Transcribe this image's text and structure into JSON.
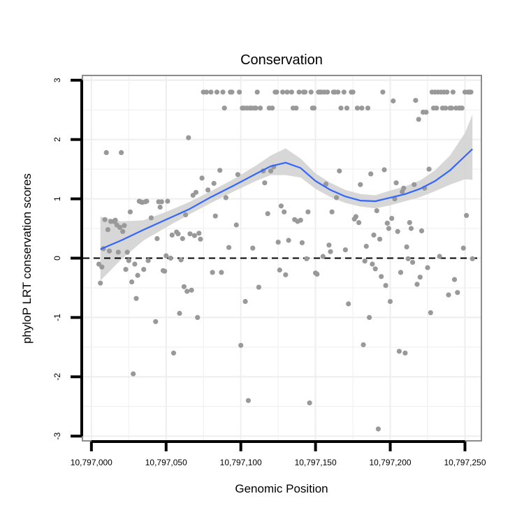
{
  "chart_data": {
    "type": "scatter",
    "title": "Conservation",
    "xlabel": "Genomic Position",
    "ylabel": "phyloP LRT conservation scores",
    "xlim": [
      10796994,
      10797261
    ],
    "ylim": [
      -3.08,
      3.08
    ],
    "xticks": [
      10797000,
      10797050,
      10797100,
      10797150,
      10797200,
      10797250
    ],
    "xtick_labels": [
      "10,797,000",
      "10,797,050",
      "10,797,100",
      "10,797,150",
      "10,797,200",
      "10,797,250"
    ],
    "yticks": [
      -3,
      -2,
      -1,
      0,
      1,
      2,
      3
    ],
    "ytick_labels": [
      "-3",
      "-2",
      "-1",
      "0",
      "1",
      "2",
      "3"
    ],
    "reference_line": {
      "y": 0,
      "style": "dashed"
    },
    "colors": {
      "points": "#999999",
      "smooth": "#3366ff",
      "band": "#d0d0d0",
      "panel": "#ffffff",
      "grid": "#eeeeee",
      "frame": "#8c8c8c"
    },
    "points": [
      [
        10797005,
        -0.1
      ],
      [
        10797006,
        -0.42
      ],
      [
        10797007,
        -0.15
      ],
      [
        10797008,
        0.16
      ],
      [
        10797009,
        0.65
      ],
      [
        10797010,
        1.78
      ],
      [
        10797011,
        0.48
      ],
      [
        10797012,
        0.12
      ],
      [
        10797013,
        0.62
      ],
      [
        10797015,
        0.62
      ],
      [
        10797016,
        0.64
      ],
      [
        10797017,
        0.56
      ],
      [
        10797018,
        0.1
      ],
      [
        10797019,
        0.52
      ],
      [
        10797020,
        1.78
      ],
      [
        10797021,
        0.45
      ],
      [
        10797022,
        0.55
      ],
      [
        10797023,
        -0.19
      ],
      [
        10797024,
        0.1
      ],
      [
        10797025,
        -0.04
      ],
      [
        10797026,
        0.78
      ],
      [
        10797027,
        -0.4
      ],
      [
        10797028,
        -1.95
      ],
      [
        10797029,
        -0.1
      ],
      [
        10797030,
        -0.68
      ],
      [
        10797031,
        -0.29
      ],
      [
        10797032,
        0.96
      ],
      [
        10797033,
        0.95
      ],
      [
        10797034,
        0.94
      ],
      [
        10797035,
        -0.19
      ],
      [
        10797036,
        0.95
      ],
      [
        10797037,
        0.96
      ],
      [
        10797038,
        -0.04
      ],
      [
        10797040,
        0.68
      ],
      [
        10797043,
        -1.07
      ],
      [
        10797044,
        0.33
      ],
      [
        10797045,
        0.95
      ],
      [
        10797046,
        0.86
      ],
      [
        10797047,
        0.95
      ],
      [
        10797048,
        -0.21
      ],
      [
        10797049,
        -0.22
      ],
      [
        10797050,
        0.04
      ],
      [
        10797051,
        0.96
      ],
      [
        10797053,
        0.0
      ],
      [
        10797054,
        0.39
      ],
      [
        10797055,
        -1.6
      ],
      [
        10797057,
        0.44
      ],
      [
        10797058,
        0.41
      ],
      [
        10797059,
        -0.93
      ],
      [
        10797060,
        -0.03
      ],
      [
        10797061,
        0.33
      ],
      [
        10797062,
        -0.48
      ],
      [
        10797063,
        0.73
      ],
      [
        10797064,
        -0.56
      ],
      [
        10797065,
        2.03
      ],
      [
        10797066,
        0.41
      ],
      [
        10797067,
        -0.54
      ],
      [
        10797068,
        1.06
      ],
      [
        10797069,
        0.38
      ],
      [
        10797070,
        1.11
      ],
      [
        10797071,
        -1.0
      ],
      [
        10797072,
        0.42
      ],
      [
        10797073,
        0.32
      ],
      [
        10797074,
        1.35
      ],
      [
        10797075,
        2.8
      ],
      [
        10797077,
        2.8
      ],
      [
        10797078,
        1.15
      ],
      [
        10797080,
        2.8
      ],
      [
        10797081,
        -0.24
      ],
      [
        10797082,
        1.26
      ],
      [
        10797083,
        0.71
      ],
      [
        10797084,
        2.8
      ],
      [
        10797086,
        1.48
      ],
      [
        10797087,
        -0.24
      ],
      [
        10797088,
        2.8
      ],
      [
        10797089,
        2.53
      ],
      [
        10797090,
        1.02
      ],
      [
        10797092,
        0.18
      ],
      [
        10797093,
        2.8
      ],
      [
        10797094,
        2.8
      ],
      [
        10797097,
        0.56
      ],
      [
        10797098,
        1.41
      ],
      [
        10797099,
        2.8
      ],
      [
        10797100,
        -1.47
      ],
      [
        10797101,
        2.53
      ],
      [
        10797102,
        2.53
      ],
      [
        10797103,
        -0.73
      ],
      [
        10797104,
        2.53
      ],
      [
        10797105,
        -2.4
      ],
      [
        10797106,
        2.53
      ],
      [
        10797107,
        2.53
      ],
      [
        10797108,
        0.17
      ],
      [
        10797109,
        2.53
      ],
      [
        10797110,
        2.53
      ],
      [
        10797111,
        2.8
      ],
      [
        10797112,
        -0.49
      ],
      [
        10797113,
        2.53
      ],
      [
        10797115,
        1.47
      ],
      [
        10797116,
        1.27
      ],
      [
        10797118,
        0.75
      ],
      [
        10797119,
        2.53
      ],
      [
        10797120,
        1.47
      ],
      [
        10797121,
        2.53
      ],
      [
        10797122,
        1.54
      ],
      [
        10797123,
        2.8
      ],
      [
        10797124,
        2.8
      ],
      [
        10797125,
        0.27
      ],
      [
        10797126,
        -0.2
      ],
      [
        10797127,
        0.88
      ],
      [
        10797128,
        2.8
      ],
      [
        10797129,
        0.78
      ],
      [
        10797130,
        -0.28
      ],
      [
        10797131,
        2.8
      ],
      [
        10797132,
        0.3
      ],
      [
        10797134,
        2.8
      ],
      [
        10797135,
        2.53
      ],
      [
        10797136,
        0.65
      ],
      [
        10797137,
        2.53
      ],
      [
        10797138,
        0.62
      ],
      [
        10797139,
        2.8
      ],
      [
        10797140,
        0.64
      ],
      [
        10797141,
        0.26
      ],
      [
        10797142,
        2.8
      ],
      [
        10797143,
        2.8
      ],
      [
        10797144,
        -0.01
      ],
      [
        10797145,
        0.78
      ],
      [
        10797146,
        -2.44
      ],
      [
        10797147,
        2.8
      ],
      [
        10797148,
        2.53
      ],
      [
        10797149,
        2.53
      ],
      [
        10797150,
        -0.25
      ],
      [
        10797151,
        -0.27
      ],
      [
        10797152,
        2.8
      ],
      [
        10797153,
        2.8
      ],
      [
        10797154,
        2.8
      ],
      [
        10797155,
        0.03
      ],
      [
        10797156,
        2.8
      ],
      [
        10797157,
        1.25
      ],
      [
        10797158,
        2.8
      ],
      [
        10797159,
        0.22
      ],
      [
        10797160,
        0.11
      ],
      [
        10797161,
        0.78
      ],
      [
        10797162,
        2.8
      ],
      [
        10797163,
        2.8
      ],
      [
        10797164,
        1.02
      ],
      [
        10797165,
        2.8
      ],
      [
        10797166,
        1.47
      ],
      [
        10797167,
        2.53
      ],
      [
        10797169,
        2.8
      ],
      [
        10797170,
        0.14
      ],
      [
        10797171,
        2.53
      ],
      [
        10797172,
        -0.77
      ],
      [
        10797174,
        2.8
      ],
      [
        10797175,
        2.8
      ],
      [
        10797176,
        0.66
      ],
      [
        10797177,
        0.7
      ],
      [
        10797178,
        2.53
      ],
      [
        10797179,
        0.6
      ],
      [
        10797180,
        1.24
      ],
      [
        10797181,
        2.53
      ],
      [
        10797182,
        -1.46
      ],
      [
        10797183,
        -0.05
      ],
      [
        10797184,
        0.2
      ],
      [
        10797185,
        2.53
      ],
      [
        10797186,
        -1.0
      ],
      [
        10797187,
        1.42
      ],
      [
        10797188,
        -0.1
      ],
      [
        10797189,
        0.39
      ],
      [
        10797190,
        -0.18
      ],
      [
        10797191,
        0.8
      ],
      [
        10797192,
        -2.88
      ],
      [
        10797193,
        0.32
      ],
      [
        10797194,
        -0.31
      ],
      [
        10797195,
        2.8
      ],
      [
        10797196,
        1.49
      ],
      [
        10797197,
        -0.46
      ],
      [
        10797198,
        0.59
      ],
      [
        10797199,
        0.5
      ],
      [
        10797200,
        -0.73
      ],
      [
        10797201,
        0.67
      ],
      [
        10797202,
        2.65
      ],
      [
        10797203,
        1.0
      ],
      [
        10797204,
        1.27
      ],
      [
        10797205,
        0.45
      ],
      [
        10797206,
        -1.57
      ],
      [
        10797207,
        -0.24
      ],
      [
        10797208,
        1.12
      ],
      [
        10797209,
        1.18
      ],
      [
        10797210,
        -1.6
      ],
      [
        10797211,
        0.19
      ],
      [
        10797212,
        -0.01
      ],
      [
        10797213,
        0.6
      ],
      [
        10797214,
        0.5
      ],
      [
        10797215,
        -0.07
      ],
      [
        10797216,
        1.24
      ],
      [
        10797217,
        2.66
      ],
      [
        10797218,
        -0.44
      ],
      [
        10797219,
        2.34
      ],
      [
        10797220,
        -0.32
      ],
      [
        10797221,
        0.46
      ],
      [
        10797222,
        2.46
      ],
      [
        10797223,
        1.18
      ],
      [
        10797224,
        2.46
      ],
      [
        10797225,
        -0.16
      ],
      [
        10797226,
        1.5
      ],
      [
        10797227,
        -0.92
      ],
      [
        10797228,
        2.8
      ],
      [
        10797229,
        2.53
      ],
      [
        10797230,
        2.8
      ],
      [
        10797231,
        2.53
      ],
      [
        10797232,
        2.8
      ],
      [
        10797233,
        0.03
      ],
      [
        10797234,
        2.8
      ],
      [
        10797235,
        2.53
      ],
      [
        10797236,
        2.8
      ],
      [
        10797237,
        2.53
      ],
      [
        10797238,
        2.8
      ],
      [
        10797239,
        -0.62
      ],
      [
        10797240,
        2.53
      ],
      [
        10797241,
        2.53
      ],
      [
        10797242,
        2.8
      ],
      [
        10797243,
        -0.36
      ],
      [
        10797244,
        2.53
      ],
      [
        10797245,
        -0.58
      ],
      [
        10797246,
        2.53
      ],
      [
        10797247,
        2.53
      ],
      [
        10797248,
        2.53
      ],
      [
        10797249,
        0.17
      ],
      [
        10797250,
        2.8
      ],
      [
        10797251,
        0.72
      ],
      [
        10797252,
        2.8
      ],
      [
        10797253,
        2.8
      ],
      [
        10797254,
        2.8
      ],
      [
        10797255,
        -0.01
      ]
    ],
    "smooth": {
      "x": [
        10797006,
        10797020,
        10797035,
        10797050,
        10797065,
        10797080,
        10797095,
        10797110,
        10797120,
        10797130,
        10797140,
        10797150,
        10797160,
        10797170,
        10797180,
        10797190,
        10797200,
        10797210,
        10797220,
        10797230,
        10797240,
        10797250,
        10797255
      ],
      "y": [
        0.15,
        0.3,
        0.48,
        0.65,
        0.82,
        1.03,
        1.22,
        1.42,
        1.55,
        1.61,
        1.52,
        1.3,
        1.15,
        1.04,
        0.97,
        0.96,
        1.02,
        1.08,
        1.17,
        1.3,
        1.48,
        1.72,
        1.84
      ],
      "lower": [
        -0.38,
        -0.02,
        0.3,
        0.52,
        0.73,
        0.93,
        1.12,
        1.3,
        1.4,
        1.4,
        1.36,
        1.17,
        1.03,
        0.93,
        0.87,
        0.84,
        0.89,
        0.96,
        1.03,
        1.13,
        1.24,
        1.33,
        1.32
      ],
      "upper": [
        0.7,
        0.62,
        0.64,
        0.78,
        0.94,
        1.13,
        1.33,
        1.56,
        1.73,
        1.85,
        1.68,
        1.43,
        1.27,
        1.15,
        1.08,
        1.06,
        1.14,
        1.21,
        1.31,
        1.48,
        1.73,
        2.11,
        2.42
      ]
    }
  }
}
